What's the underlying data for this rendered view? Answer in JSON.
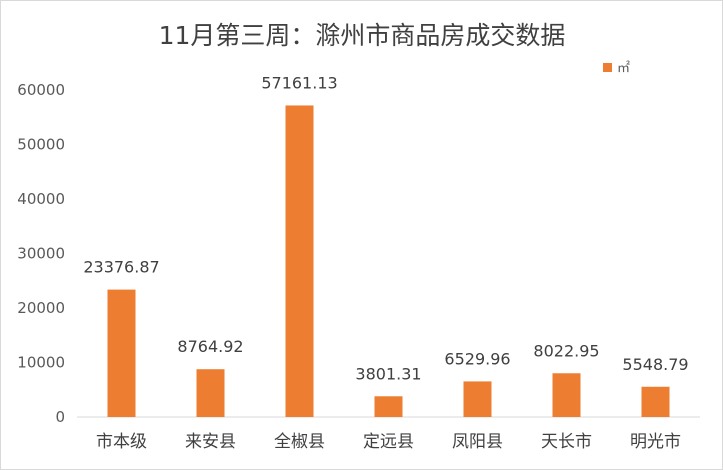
{
  "chart_data": {
    "type": "bar",
    "title": "11月第三周：滁州市商品房成交数据",
    "categories": [
      "市本级",
      "来安县",
      "全椒县",
      "定远县",
      "凤阳县",
      "天长市",
      "明光市"
    ],
    "series": [
      {
        "name": "㎡",
        "values": [
          23376.87,
          8764.92,
          57161.13,
          3801.31,
          6529.96,
          8022.95,
          5548.79
        ],
        "color": "#ED7D31"
      }
    ],
    "data_labels": [
      "23376.87",
      "8764.92",
      "57161.13",
      "3801.31",
      "6529.96",
      "8022.95",
      "5548.79"
    ],
    "y_ticks": [
      "0",
      "10000",
      "20000",
      "30000",
      "40000",
      "50000",
      "60000"
    ],
    "ylim": [
      0,
      60000
    ],
    "grid": false,
    "legend_position": "top-right"
  }
}
